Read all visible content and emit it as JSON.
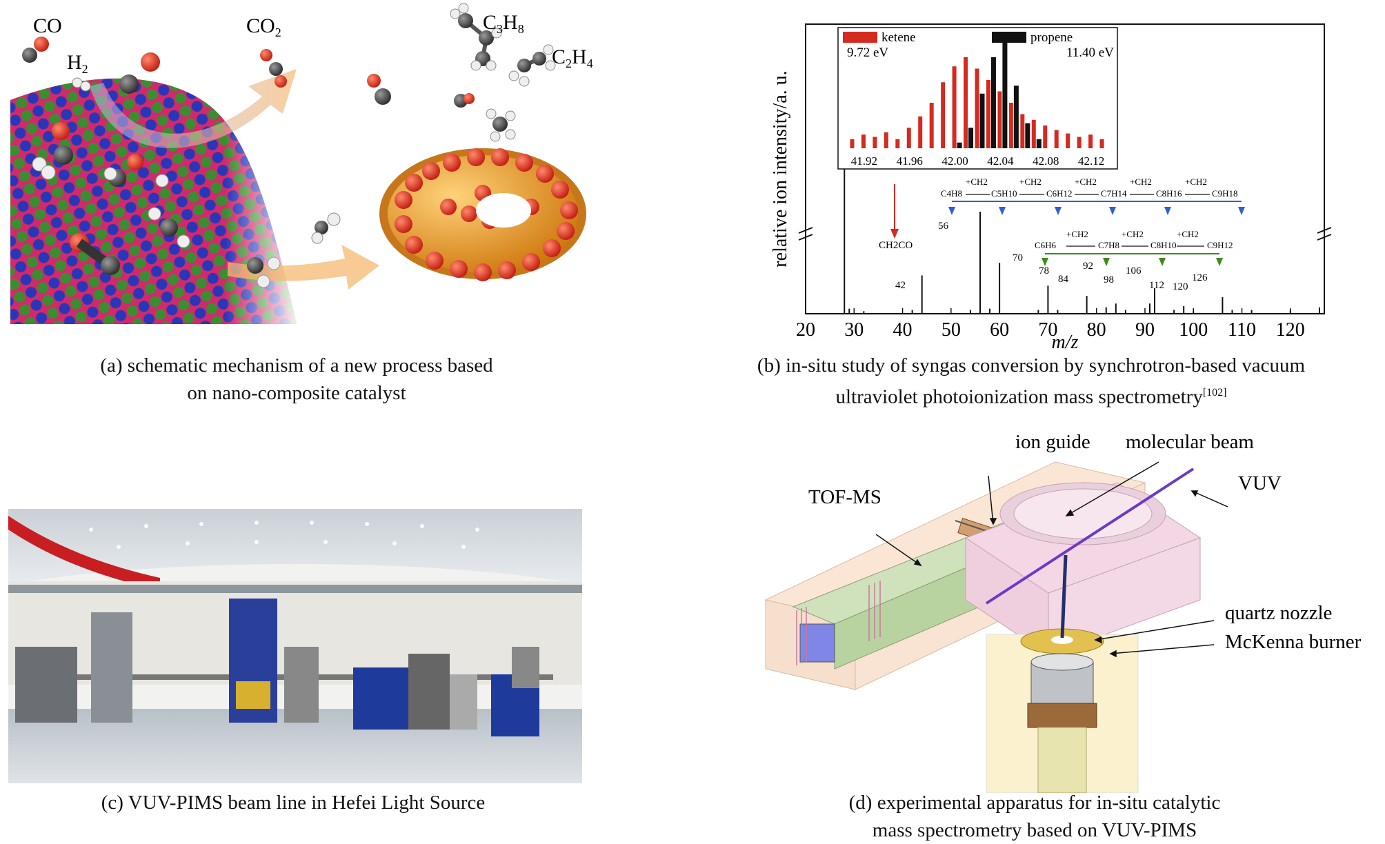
{
  "panel_a": {
    "caption_line1": "(a) schematic mechanism of a new process based",
    "caption_line2": "on nano-composite catalyst",
    "labels": {
      "co": "CO",
      "h2_main": "H",
      "h2_sub": "2",
      "co2_main": "CO",
      "co2_sub": "2",
      "c3h8_c": "C",
      "c3h8_3": "3",
      "c3h8_h": "H",
      "c3h8_8": "8",
      "c2h4_c": "C",
      "c2h4_2": "2",
      "c2h4_h": "H",
      "c2h4_4": "4"
    }
  },
  "panel_b": {
    "caption_line1": "(b) in-situ study of syngas conversion by synchrotron-based vacuum",
    "caption_line2": "ultraviolet photoionization mass spectrometry",
    "caption_ref": "[102]",
    "ylabel": "relative ion intensity/a. u.",
    "xlabel": "m/z",
    "inset": {
      "legend_ketene": "ketene",
      "ketene_ev": "9.72 eV",
      "legend_propene": "propene",
      "propene_ev": "11.40 eV",
      "ticks": [
        "41.92",
        "41.96",
        "42.00",
        "42.04",
        "42.08",
        "42.12"
      ],
      "colors": {
        "ketene": "#d42a20",
        "propene": "#111111"
      }
    },
    "annotations": {
      "ch2co": "CH2CO",
      "plus_ch2": "+CH2",
      "blue_series": [
        "C4H8",
        "C5H10",
        "C6H12",
        "C7H14",
        "C8H16",
        "C9H18"
      ],
      "green_series": [
        "C6H6",
        "C7H8",
        "C8H10",
        "C9H12"
      ],
      "colors": {
        "blue": "#2c5fd8",
        "green": "#3f8a1e",
        "red": "#d42a20"
      }
    },
    "peak_labels": [
      "42",
      "56",
      "70",
      "78",
      "84",
      "92",
      "98",
      "106",
      "112",
      "120",
      "126"
    ]
  },
  "panel_c": {
    "caption": "(c) VUV-PIMS beam line in Hefei Light Source"
  },
  "panel_d": {
    "caption_line1": "(d) experimental apparatus for in-situ catalytic",
    "caption_line2": "mass spectrometry based on VUV-PIMS",
    "labels": {
      "tofms": "TOF-MS",
      "ion_guide": "ion guide",
      "molecular_beam": "molecular beam",
      "vuv": "VUV",
      "quartz_nozzle": "quartz nozzle",
      "mckenna": "McKenna burner"
    }
  },
  "chart_data": {
    "type": "bar",
    "title": "",
    "xlabel": "m/z",
    "ylabel": "relative ion intensity/a. u.",
    "xlim": [
      20,
      127
    ],
    "x_ticks": [
      20,
      30,
      40,
      50,
      60,
      70,
      80,
      90,
      100,
      110,
      120
    ],
    "peaks": [
      {
        "x": 28,
        "y": 100
      },
      {
        "x": 29,
        "y": 4
      },
      {
        "x": 32,
        "y": 2
      },
      {
        "x": 42,
        "y": 3
      },
      {
        "x": 44,
        "y": 30
      },
      {
        "x": 54,
        "y": 3
      },
      {
        "x": 56,
        "y": 80
      },
      {
        "x": 58,
        "y": 4
      },
      {
        "x": 60,
        "y": 40
      },
      {
        "x": 68,
        "y": 3
      },
      {
        "x": 70,
        "y": 22
      },
      {
        "x": 72,
        "y": 3
      },
      {
        "x": 78,
        "y": 14
      },
      {
        "x": 82,
        "y": 5
      },
      {
        "x": 84,
        "y": 8
      },
      {
        "x": 86,
        "y": 3
      },
      {
        "x": 91,
        "y": 8
      },
      {
        "x": 92,
        "y": 20
      },
      {
        "x": 96,
        "y": 3
      },
      {
        "x": 98,
        "y": 6
      },
      {
        "x": 100,
        "y": 2
      },
      {
        "x": 106,
        "y": 13
      },
      {
        "x": 108,
        "y": 3
      },
      {
        "x": 112,
        "y": 3
      },
      {
        "x": 120,
        "y": 3
      },
      {
        "x": 126,
        "y": 5
      }
    ],
    "inset": {
      "type": "bar",
      "xlim": [
        41.9,
        42.14
      ],
      "series": [
        {
          "name": "ketene",
          "x": [
            41.91,
            41.92,
            41.93,
            41.94,
            41.95,
            41.96,
            41.97,
            41.98,
            41.99,
            42.0,
            42.01,
            42.02,
            42.03,
            42.04,
            42.05,
            42.06,
            42.07,
            42.08,
            42.09,
            42.1,
            42.11,
            42.12,
            42.13
          ],
          "values": [
            8,
            12,
            10,
            14,
            8,
            18,
            28,
            40,
            58,
            72,
            80,
            70,
            60,
            50,
            40,
            30,
            25,
            20,
            16,
            13,
            10,
            12,
            8
          ]
        },
        {
          "name": "propene",
          "x": [
            42.0,
            42.01,
            42.02,
            42.03,
            42.04,
            42.05,
            42.06,
            42.07
          ],
          "values": [
            5,
            18,
            48,
            80,
            95,
            55,
            22,
            8
          ]
        }
      ]
    }
  }
}
